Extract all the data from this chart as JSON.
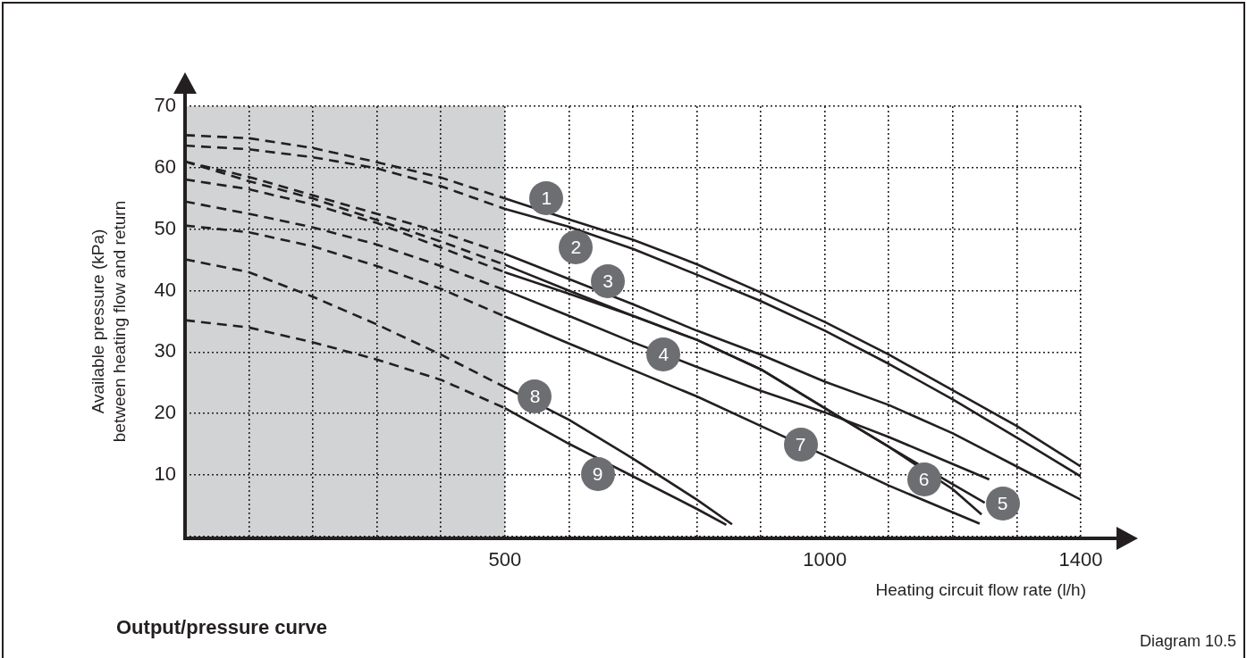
{
  "chart_data": {
    "type": "line",
    "title": "Output/pressure curve",
    "xlabel": "Heating circuit flow rate (l/h)",
    "ylabel": "Available pressure (kPa)\nbetween heating flow and return",
    "annotations": [
      "Diagram 10.5"
    ],
    "xlim": [
      0,
      1400
    ],
    "ylim": [
      0,
      70
    ],
    "xticks": [
      {
        "value": 0,
        "label": null
      },
      {
        "value": 100,
        "label": null
      },
      {
        "value": 200,
        "label": null
      },
      {
        "value": 300,
        "label": null
      },
      {
        "value": 400,
        "label": null
      },
      500,
      {
        "value": 600,
        "label": null
      },
      {
        "value": 700,
        "label": null
      },
      {
        "value": 800,
        "label": null
      },
      {
        "value": 900,
        "label": null
      },
      1000,
      {
        "value": 1100,
        "label": null
      },
      {
        "value": 1200,
        "label": null
      },
      {
        "value": 1300,
        "label": null
      },
      1400
    ],
    "yticks": [
      {
        "value": 0,
        "label": null
      },
      10,
      20,
      30,
      40,
      50,
      60,
      70
    ],
    "grid": true,
    "legend": false,
    "marker": "none",
    "bands": [
      {
        "axis": "x",
        "from": 0,
        "to": 500,
        "color": "#d1d3d4"
      }
    ],
    "series": [
      {
        "name": "1",
        "color": "#231f20",
        "line_style": "solid",
        "x": [
          500,
          600,
          700,
          800,
          900,
          1000,
          1100,
          1200,
          1300,
          1400
        ],
        "values": [
          55,
          51.6,
          48.3,
          44.3,
          39.7,
          34.9,
          29.6,
          23.8,
          18,
          11.4
        ]
      },
      {
        "color": "#231f20",
        "line_style": "dashed",
        "x": [
          0,
          100,
          200,
          300,
          400,
          500
        ],
        "values": [
          65.3,
          64.8,
          63.2,
          60.9,
          58.4,
          55
        ]
      },
      {
        "name": "2",
        "color": "#231f20",
        "line_style": "solid",
        "x": [
          500,
          600,
          700,
          800,
          900,
          1000,
          1100,
          1200,
          1300,
          1400
        ],
        "values": [
          53.3,
          50.4,
          46.8,
          42.6,
          38.3,
          33.5,
          28.1,
          22.3,
          16.1,
          9.8
        ]
      },
      {
        "color": "#231f20",
        "line_style": "dashed",
        "x": [
          0,
          100,
          200,
          300,
          400,
          500
        ],
        "values": [
          63.6,
          63,
          61.7,
          59.9,
          57,
          53.3
        ]
      },
      {
        "name": "3",
        "color": "#231f20",
        "line_style": "solid",
        "x": [
          500,
          600,
          700,
          800,
          900,
          1000,
          1100,
          1200,
          1300,
          1400
        ],
        "values": [
          46,
          41.9,
          37.8,
          33.5,
          29.6,
          25.2,
          21.4,
          16.8,
          11.4,
          6
        ]
      },
      {
        "color": "#231f20",
        "line_style": "dashed",
        "x": [
          0,
          100,
          200,
          300,
          400,
          500
        ],
        "values": [
          61,
          58.5,
          55.5,
          52.5,
          49.5,
          46
        ]
      },
      {
        "name": "4",
        "color": "#231f20",
        "line_style": "solid",
        "x": [
          500,
          600,
          700,
          800,
          900,
          1000,
          1100,
          1200,
          1257
        ],
        "values": [
          40.1,
          35.9,
          31.6,
          27.6,
          23.7,
          20.2,
          16.2,
          11.8,
          9.3
        ]
      },
      {
        "color": "#231f20",
        "line_style": "dashed",
        "x": [
          0,
          100,
          200,
          300,
          400,
          500
        ],
        "values": [
          54.5,
          52.5,
          50.3,
          47.5,
          44,
          40.1
        ]
      },
      {
        "name": "5",
        "color": "#231f20",
        "line_style": "solid",
        "x": [
          500,
          600,
          700,
          800,
          900,
          1000,
          1100,
          1200,
          1250
        ],
        "values": [
          44.2,
          40,
          35.9,
          32,
          27.2,
          20.9,
          14.6,
          8.5,
          5.5
        ]
      },
      {
        "color": "#231f20",
        "line_style": "dashed",
        "x": [
          0,
          100,
          200,
          300,
          400,
          500
        ],
        "values": [
          61,
          57.8,
          55,
          51.5,
          48,
          44.2
        ]
      },
      {
        "name": "6",
        "color": "#231f20",
        "line_style": "solid",
        "x": [
          500,
          600,
          700,
          800,
          900,
          1000,
          1100,
          1200,
          1245
        ],
        "values": [
          43,
          39.5,
          35.9,
          32,
          27.2,
          20.9,
          14.6,
          7.7,
          3.6
        ]
      },
      {
        "color": "#231f20",
        "line_style": "dashed",
        "x": [
          0,
          100,
          200,
          300,
          400,
          500
        ],
        "values": [
          58.1,
          56.5,
          54,
          51,
          47,
          43
        ]
      },
      {
        "name": "7",
        "color": "#231f20",
        "line_style": "solid",
        "x": [
          500,
          600,
          700,
          800,
          900,
          1000,
          1100,
          1242
        ],
        "values": [
          35.8,
          31.4,
          27.1,
          22.8,
          18,
          13.2,
          8.3,
          2.1
        ]
      },
      {
        "color": "#231f20",
        "line_style": "dashed",
        "x": [
          0,
          100,
          200,
          300,
          400,
          500
        ],
        "values": [
          50.6,
          49.5,
          47.2,
          44,
          40.3,
          35.8
        ]
      },
      {
        "name": "8",
        "color": "#231f20",
        "line_style": "solid",
        "x": [
          500,
          600,
          700,
          800,
          855
        ],
        "values": [
          24.3,
          19,
          12.7,
          6,
          2
        ]
      },
      {
        "color": "#231f20",
        "line_style": "dashed",
        "x": [
          0,
          100,
          200,
          300,
          400,
          500
        ],
        "values": [
          45.1,
          43,
          39,
          34.5,
          29.6,
          24.3
        ]
      },
      {
        "name": "9",
        "color": "#231f20",
        "line_style": "solid",
        "x": [
          500,
          600,
          700,
          800,
          846
        ],
        "values": [
          20.9,
          15.1,
          9.8,
          4.5,
          1.9
        ]
      },
      {
        "color": "#231f20",
        "line_style": "dashed",
        "x": [
          0,
          100,
          200,
          300,
          400,
          500
        ],
        "values": [
          35.2,
          34,
          31.6,
          28.8,
          25.5,
          20.9
        ]
      }
    ]
  }
}
